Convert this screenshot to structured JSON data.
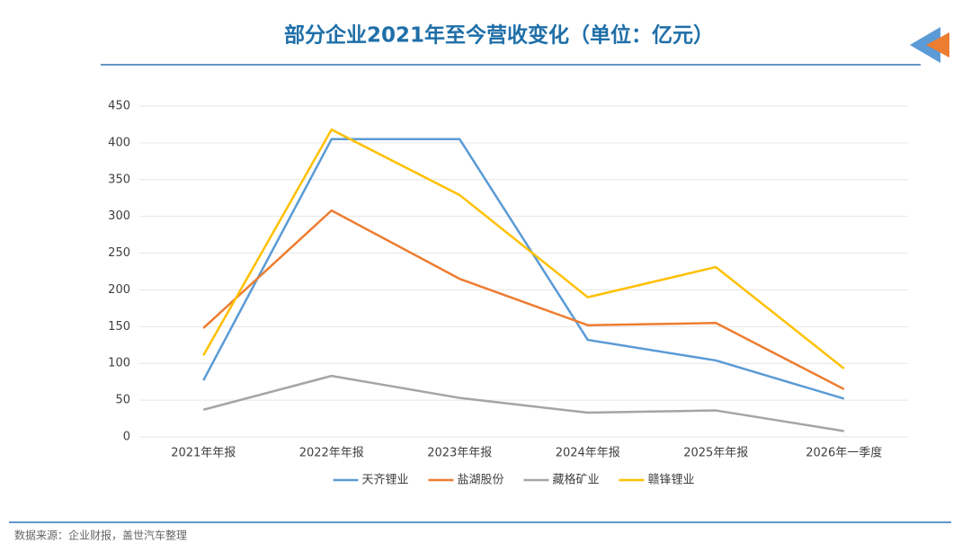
{
  "chart_data": {
    "type": "line",
    "title": "部分企业2021年至今营收变化（单位：亿元）",
    "source": "数据来源：企业财报，盖世汽车整理",
    "categories": [
      "2021年年报",
      "2022年年报",
      "2023年年报",
      "2024年年报",
      "2025年年报",
      "2026年一季度"
    ],
    "series": [
      {
        "name": "天齐锂业",
        "color": "#5b9bd5",
        "values": [
          77,
          405,
          405,
          132,
          104,
          52
        ]
      },
      {
        "name": "盐湖股份",
        "color": "#ed7d31",
        "values": [
          148,
          308,
          215,
          152,
          155,
          65
        ]
      },
      {
        "name": "藏格矿业",
        "color": "#a5a5a5",
        "values": [
          37,
          83,
          53,
          33,
          36,
          8
        ]
      },
      {
        "name": "赣锋锂业",
        "color": "#ffc000",
        "values": [
          111,
          418,
          329,
          190,
          231,
          93
        ]
      }
    ],
    "ylim": [
      0,
      450
    ],
    "yticks": [
      0,
      50,
      100,
      150,
      200,
      250,
      300,
      350,
      400,
      450
    ],
    "grid": true,
    "legend": "bottom"
  }
}
